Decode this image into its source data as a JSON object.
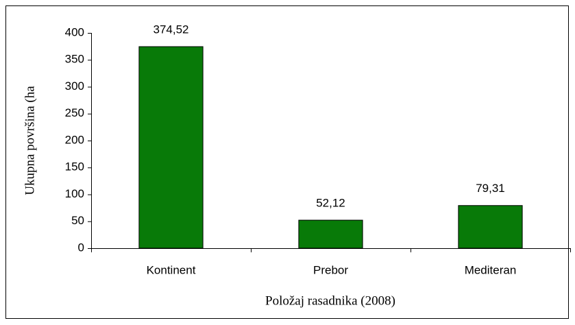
{
  "chart_data": {
    "type": "bar",
    "categories": [
      "Kontinent",
      "Prebor",
      "Mediteran"
    ],
    "values": [
      374.52,
      52.12,
      79.31
    ],
    "value_labels": [
      "374,52",
      "52,12",
      "79,31"
    ],
    "color": "#087a08",
    "ylim": [
      0,
      400
    ],
    "yticks": [
      0,
      50,
      100,
      150,
      200,
      250,
      300,
      350,
      400
    ],
    "ylabel": "Ukupna površina (ha",
    "xlabel": "Položaj rasadnika (2008)",
    "grid": false
  }
}
